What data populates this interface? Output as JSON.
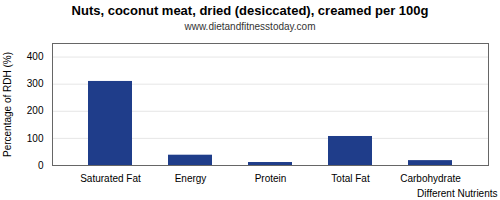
{
  "chart_data": {
    "type": "bar",
    "title": "Nuts, coconut meat, dried (desiccated), creamed per 100g",
    "subtitle": "www.dietandfitnesstoday.com",
    "xlabel": "Different Nutrients",
    "ylabel": "Percentage of RDH (%)",
    "categories": [
      "Saturated Fat",
      "Energy",
      "Protein",
      "Total Fat",
      "Carbohydrate"
    ],
    "values": [
      310,
      38,
      11,
      107,
      18
    ],
    "color": "#1f3d8a",
    "ylim": [
      0,
      450
    ],
    "yticks": [
      0,
      100,
      200,
      300,
      400
    ],
    "grid": true
  }
}
